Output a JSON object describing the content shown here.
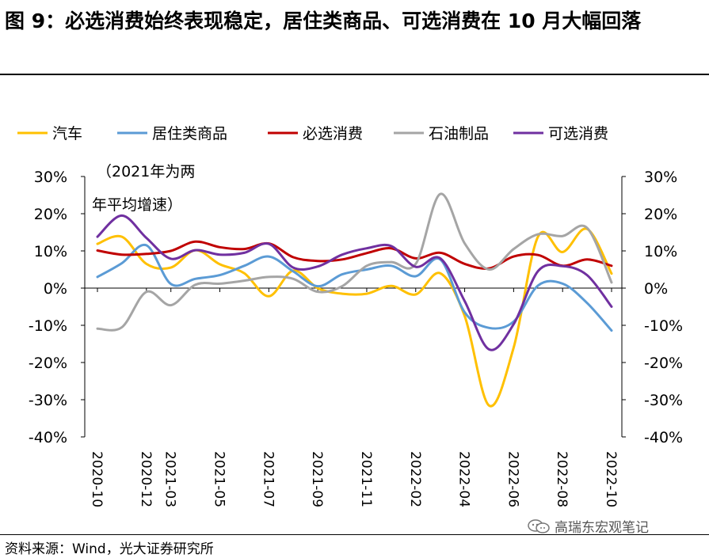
{
  "title": "图 9：必选消费始终表现稳定，居住类商品、可选消费在 10 月大幅回落",
  "source": "资料来源：Wind，光大证券研究所",
  "watermark": "高瑞东宏观笔记",
  "chart_data": {
    "type": "line",
    "annotation": [
      "（2021年为两",
      "年平均增速）"
    ],
    "ylim": [
      -40,
      30
    ],
    "yticks": [
      "30%",
      "20%",
      "10%",
      "0%",
      "-10%",
      "-20%",
      "-30%",
      "-40%"
    ],
    "ytick_values": [
      30,
      20,
      10,
      0,
      -10,
      -20,
      -30,
      -40
    ],
    "x_tick_labels": [
      "2020-10",
      "2020-12",
      "2021-03",
      "2021-05",
      "2021-07",
      "2021-09",
      "2021-11",
      "2022-02",
      "2022-04",
      "2022-06",
      "2022-08",
      "2022-10"
    ],
    "x": [
      "2020-10",
      "2020-11",
      "2020-12",
      "2021-03",
      "2021-04",
      "2021-05",
      "2021-06",
      "2021-07",
      "2021-08",
      "2021-09",
      "2021-10",
      "2021-11",
      "2021-12",
      "2022-02",
      "2022-03",
      "2022-04",
      "2022-05",
      "2022-06",
      "2022-07",
      "2022-08",
      "2022-09",
      "2022-10"
    ],
    "series": [
      {
        "name": "汽车",
        "color": "#FFC000",
        "values": [
          11.9,
          13.8,
          6.5,
          5.5,
          10.2,
          6.4,
          4.0,
          -2.2,
          4.7,
          0.0,
          -1.5,
          -1.5,
          0.6,
          -1.7,
          4.0,
          -7.5,
          -31.6,
          -16.0,
          13.9,
          9.7,
          15.9,
          3.9
        ]
      },
      {
        "name": "居住类商品",
        "color": "#5B9BD5",
        "values": [
          3.0,
          6.7,
          11.5,
          1.1,
          2.5,
          3.5,
          6.0,
          8.5,
          4.5,
          0.5,
          3.7,
          5.0,
          6.0,
          3.2,
          7.7,
          -6.5,
          -10.7,
          -9.0,
          0.7,
          1.2,
          -4.0,
          -11.4
        ]
      },
      {
        "name": "必选消费",
        "color": "#C00000",
        "values": [
          10.1,
          9.0,
          9.2,
          10.0,
          12.5,
          11.0,
          10.5,
          12.0,
          8.3,
          7.3,
          7.7,
          9.4,
          10.7,
          8.0,
          9.5,
          6.5,
          5.3,
          8.5,
          8.9,
          6.0,
          7.7,
          6.0
        ]
      },
      {
        "name": "石油制品",
        "color": "#A5A5A5",
        "values": [
          -10.9,
          -10.5,
          -1.0,
          -4.6,
          0.9,
          1.2,
          2.0,
          3.0,
          2.5,
          -1.0,
          0.5,
          6.0,
          7.0,
          6.5,
          25.3,
          12.0,
          5.0,
          10.5,
          14.5,
          14.0,
          16.2,
          1.5
        ]
      },
      {
        "name": "可选消费",
        "color": "#7030A0",
        "values": [
          13.8,
          19.5,
          13.5,
          7.9,
          10.2,
          9.0,
          9.5,
          11.9,
          5.5,
          5.8,
          9.0,
          10.7,
          11.3,
          5.7,
          8.0,
          -3.5,
          -16.5,
          -9.7,
          4.6,
          5.9,
          3.5,
          -5.0
        ]
      }
    ]
  }
}
